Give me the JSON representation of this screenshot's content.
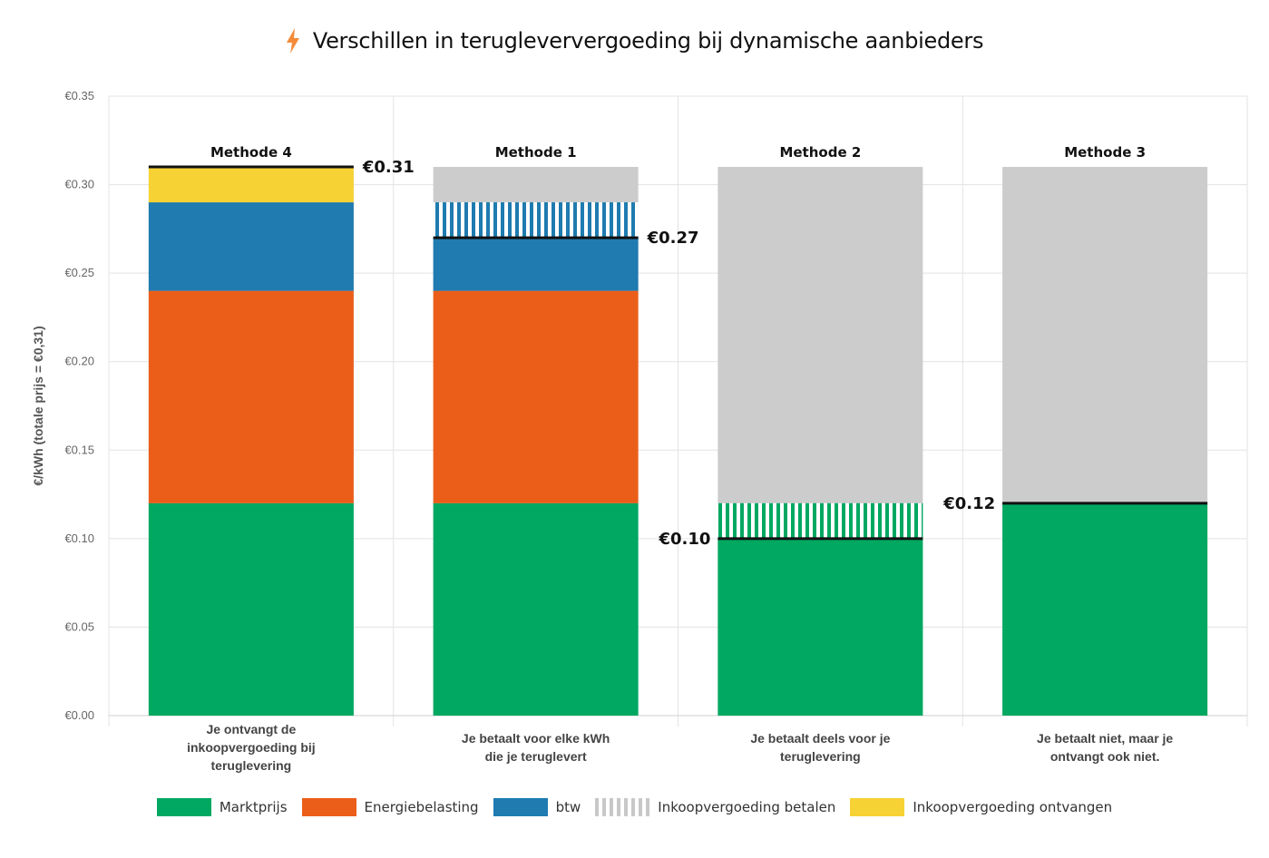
{
  "title": "Verschillen in terugleververgoeding bij dynamische aanbieders",
  "colors": {
    "marktprijs": "#00a862",
    "energiebelasting": "#eb5e1a",
    "btw": "#1f7bb0",
    "betalen_stripe": "#c8c8c8",
    "ontvangen": "#f7d235",
    "background_bar": "#cccccc",
    "title_icon": "#f58b3a"
  },
  "chart_data": {
    "type": "bar",
    "stacked": true,
    "title": "Verschillen in terugleververgoeding bij dynamische aanbieders",
    "ylabel": "€/kWh (totale prijs = €0,31)",
    "ylim": [
      0,
      0.35
    ],
    "yticks": [
      "€0.00",
      "€0.05",
      "€0.10",
      "€0.15",
      "€0.20",
      "€0.25",
      "€0.30",
      "€0.35"
    ],
    "ytick_values": [
      0,
      0.05,
      0.1,
      0.15,
      0.2,
      0.25,
      0.3,
      0.35
    ],
    "grid": true,
    "total_price": 0.31,
    "categories": [
      "Methode 4",
      "Methode 1",
      "Methode 2",
      "Methode 3"
    ],
    "descriptions": [
      [
        "Je ontvangt de",
        "inkoopvergoeding bij",
        "teruglevering"
      ],
      [
        "Je betaalt voor elke kWh",
        "die je teruglevert"
      ],
      [
        "Je betaalt deels voor je",
        "teruglevering"
      ],
      [
        "Je betaalt niet, maar je",
        "ontvangt ook niet."
      ]
    ],
    "series": [
      {
        "name": "Marktprijs",
        "key": "marktprijs",
        "values": [
          0.12,
          0.12,
          0.1,
          0.12
        ]
      },
      {
        "name": "Energiebelasting",
        "key": "energiebelasting",
        "values": [
          0.12,
          0.12,
          0,
          0
        ]
      },
      {
        "name": "btw",
        "key": "btw",
        "values": [
          0.05,
          0.03,
          0,
          0
        ]
      },
      {
        "name": "Inkoopvergoeding betalen",
        "key": "betalen",
        "values": [
          0,
          0.02,
          0.02,
          0
        ]
      },
      {
        "name": "Inkoopvergoeding ontvangen",
        "key": "ontvangen",
        "values": [
          0.02,
          0,
          0,
          0
        ]
      }
    ],
    "result_values": [
      0.31,
      0.27,
      0.1,
      0.12
    ],
    "result_labels": [
      "€0.31",
      "€0.27",
      "€0.10",
      "€0.12"
    ],
    "result_label_side": [
      "right",
      "right",
      "left",
      "left"
    ]
  },
  "legend": {
    "items": [
      {
        "label": "Marktprijs",
        "key": "marktprijs"
      },
      {
        "label": "Energiebelasting",
        "key": "energiebelasting"
      },
      {
        "label": "btw",
        "key": "btw"
      },
      {
        "label": "Inkoopvergoeding betalen",
        "key": "betalen"
      },
      {
        "label": "Inkoopvergoeding ontvangen",
        "key": "ontvangen"
      }
    ]
  }
}
